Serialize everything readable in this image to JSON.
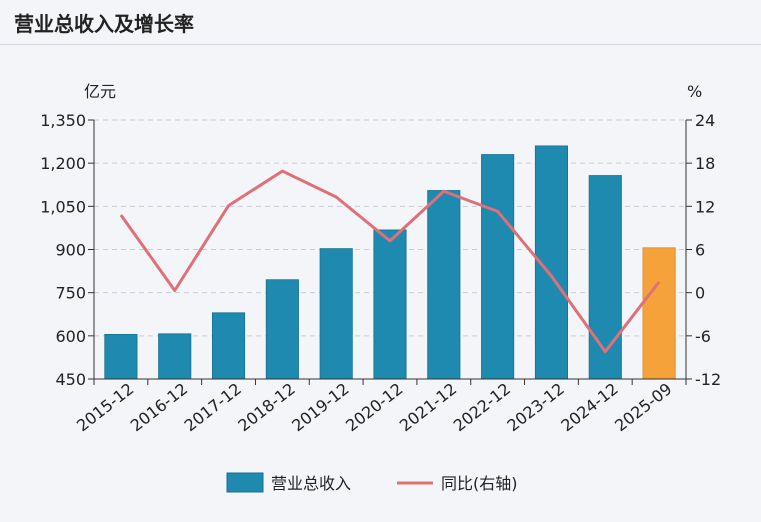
{
  "header": {
    "title": "营业总收入及增长率"
  },
  "chart_data": {
    "type": "bar",
    "title": "营业总收入及增长率",
    "categories": [
      "2015-12",
      "2016-12",
      "2017-12",
      "2018-12",
      "2019-12",
      "2020-12",
      "2021-12",
      "2022-12",
      "2023-12",
      "2024-12",
      "2025-09"
    ],
    "series": [
      {
        "name": "营业总收入",
        "type": "bar",
        "axis": "left",
        "color": "#1f8ab0",
        "highlight_last_color": "#f5a23a",
        "values": [
          605,
          607,
          680,
          795,
          903,
          968,
          1105,
          1230,
          1260,
          1157,
          906
        ]
      },
      {
        "name": "同比(右轴)",
        "type": "line",
        "axis": "right",
        "color": "#e07078",
        "values": [
          10.8,
          0.3,
          12.1,
          16.9,
          13.3,
          7.2,
          14.1,
          11.3,
          2.3,
          -8.2,
          1.5
        ]
      }
    ],
    "y_left": {
      "unit": "亿元",
      "lim": [
        450,
        1350
      ],
      "ticks": [
        450,
        600,
        750,
        900,
        1050,
        1200,
        1350
      ],
      "tick_labels": [
        "450",
        "600",
        "750",
        "900",
        "1,050",
        "1,200",
        "1,350"
      ]
    },
    "y_right": {
      "unit": "%",
      "lim": [
        -12,
        24
      ],
      "ticks": [
        -12,
        -6,
        0,
        6,
        12,
        18,
        24
      ],
      "tick_labels": [
        "-12",
        "-6",
        "0",
        "6",
        "12",
        "18",
        "24"
      ]
    },
    "grid": true,
    "legend_position": "bottom-center"
  }
}
